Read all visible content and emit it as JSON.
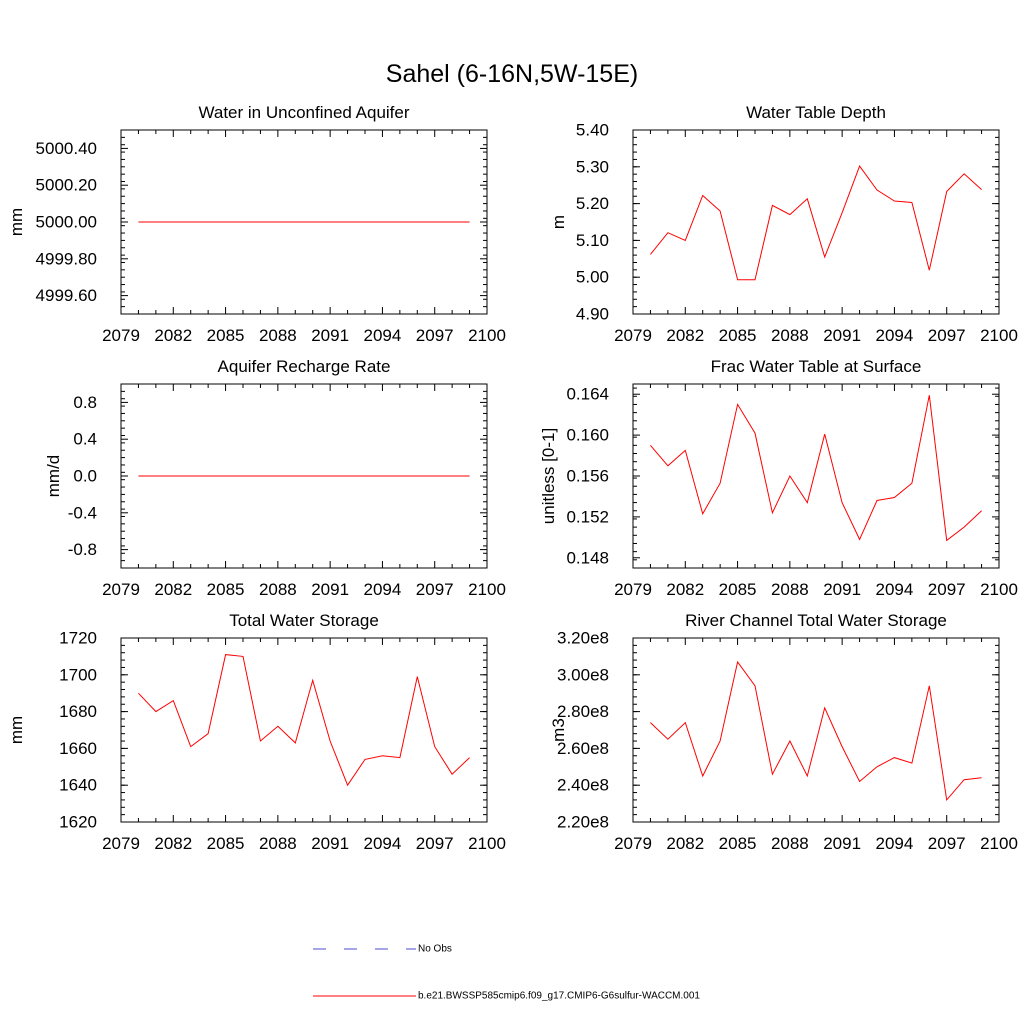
{
  "figure": {
    "title": "Sahel (6-16N,5W-15E)"
  },
  "legend": {
    "entries": [
      {
        "label": "No Obs",
        "color": "#4b4bd0",
        "style": "dashed"
      },
      {
        "label": "b.e21.BWSSP585cmip6.f09_g17.CMIP6-G6sulfur-WACCM.001",
        "color": "#ff0000",
        "style": "solid"
      }
    ]
  },
  "colors": {
    "series": "#ff0000",
    "obs": "#4b4bd0",
    "axis": "#000000"
  },
  "chart_data": [
    {
      "type": "line",
      "title": "Water in Unconfined Aquifer",
      "ylabel": "mm",
      "xlim": [
        2079,
        2100
      ],
      "ylim": [
        4999.5,
        5000.5
      ],
      "xticks": [
        "2079",
        "2082",
        "2085",
        "2088",
        "2091",
        "2094",
        "2097",
        "2100"
      ],
      "xtick_values": [
        2079,
        2082,
        2085,
        2088,
        2091,
        2094,
        2097,
        2100
      ],
      "yticks": [
        "4999.60",
        "4999.80",
        "5000.00",
        "5000.20",
        "5000.40"
      ],
      "ytick_values": [
        4999.6,
        4999.8,
        5000.0,
        5000.2,
        5000.4
      ],
      "x": [
        2080,
        2081,
        2082,
        2083,
        2084,
        2085,
        2086,
        2087,
        2088,
        2089,
        2090,
        2091,
        2092,
        2093,
        2094,
        2095,
        2096,
        2097,
        2098,
        2099
      ],
      "series": [
        {
          "values": [
            5000,
            5000,
            5000,
            5000,
            5000,
            5000,
            5000,
            5000,
            5000,
            5000,
            5000,
            5000,
            5000,
            5000,
            5000,
            5000,
            5000,
            5000,
            5000,
            5000
          ]
        }
      ]
    },
    {
      "type": "line",
      "title": "Water Table Depth",
      "ylabel": "m",
      "xlim": [
        2079,
        2100
      ],
      "ylim": [
        4.9,
        5.4
      ],
      "xticks": [
        "2079",
        "2082",
        "2085",
        "2088",
        "2091",
        "2094",
        "2097",
        "2100"
      ],
      "xtick_values": [
        2079,
        2082,
        2085,
        2088,
        2091,
        2094,
        2097,
        2100
      ],
      "yticks": [
        "4.90",
        "5.00",
        "5.10",
        "5.20",
        "5.30",
        "5.40"
      ],
      "ytick_values": [
        4.9,
        5.0,
        5.1,
        5.2,
        5.3,
        5.4
      ],
      "x": [
        2080,
        2081,
        2082,
        2083,
        2084,
        2085,
        2086,
        2087,
        2088,
        2089,
        2090,
        2091,
        2092,
        2093,
        2094,
        2095,
        2096,
        2097,
        2098,
        2099
      ],
      "series": [
        {
          "values": [
            5.062,
            5.121,
            5.1,
            5.222,
            5.18,
            4.993,
            4.993,
            5.195,
            5.17,
            5.213,
            5.055,
            5.175,
            5.302,
            5.237,
            5.207,
            5.203,
            5.019,
            5.233,
            5.281,
            5.238
          ]
        }
      ]
    },
    {
      "type": "line",
      "title": "Aquifer Recharge Rate",
      "ylabel": "mm/d",
      "xlim": [
        2079,
        2100
      ],
      "ylim": [
        -1.0,
        1.0
      ],
      "xticks": [
        "2079",
        "2082",
        "2085",
        "2088",
        "2091",
        "2094",
        "2097",
        "2100"
      ],
      "xtick_values": [
        2079,
        2082,
        2085,
        2088,
        2091,
        2094,
        2097,
        2100
      ],
      "yticks": [
        "-0.8",
        "-0.4",
        "0.0",
        "0.4",
        "0.8"
      ],
      "ytick_values": [
        -0.8,
        -0.4,
        0.0,
        0.4,
        0.8
      ],
      "x": [
        2080,
        2081,
        2082,
        2083,
        2084,
        2085,
        2086,
        2087,
        2088,
        2089,
        2090,
        2091,
        2092,
        2093,
        2094,
        2095,
        2096,
        2097,
        2098,
        2099
      ],
      "series": [
        {
          "values": [
            0,
            0,
            0,
            0,
            0,
            0,
            0,
            0,
            0,
            0,
            0,
            0,
            0,
            0,
            0,
            0,
            0,
            0,
            0,
            0
          ]
        }
      ]
    },
    {
      "type": "line",
      "title": "Frac Water Table at Surface",
      "ylabel": "unitless [0-1]",
      "xlim": [
        2079,
        2100
      ],
      "ylim": [
        0.147,
        0.165
      ],
      "xticks": [
        "2079",
        "2082",
        "2085",
        "2088",
        "2091",
        "2094",
        "2097",
        "2100"
      ],
      "xtick_values": [
        2079,
        2082,
        2085,
        2088,
        2091,
        2094,
        2097,
        2100
      ],
      "yticks": [
        "0.148",
        "0.152",
        "0.156",
        "0.160",
        "0.164"
      ],
      "ytick_values": [
        0.148,
        0.152,
        0.156,
        0.16,
        0.164
      ],
      "x": [
        2080,
        2081,
        2082,
        2083,
        2084,
        2085,
        2086,
        2087,
        2088,
        2089,
        2090,
        2091,
        2092,
        2093,
        2094,
        2095,
        2096,
        2097,
        2098,
        2099
      ],
      "series": [
        {
          "values": [
            0.159,
            0.157,
            0.1585,
            0.1523,
            0.1553,
            0.163,
            0.1602,
            0.1524,
            0.156,
            0.1534,
            0.1601,
            0.1534,
            0.1498,
            0.1536,
            0.1539,
            0.1553,
            0.1639,
            0.1497,
            0.151,
            0.1526
          ]
        }
      ]
    },
    {
      "type": "line",
      "title": "Total Water Storage",
      "ylabel": "mm",
      "xlim": [
        2079,
        2100
      ],
      "ylim": [
        1620,
        1720
      ],
      "xticks": [
        "2079",
        "2082",
        "2085",
        "2088",
        "2091",
        "2094",
        "2097",
        "2100"
      ],
      "xtick_values": [
        2079,
        2082,
        2085,
        2088,
        2091,
        2094,
        2097,
        2100
      ],
      "yticks": [
        "1620",
        "1640",
        "1660",
        "1680",
        "1700",
        "1720"
      ],
      "ytick_values": [
        1620,
        1640,
        1660,
        1680,
        1700,
        1720
      ],
      "x": [
        2080,
        2081,
        2082,
        2083,
        2084,
        2085,
        2086,
        2087,
        2088,
        2089,
        2090,
        2091,
        2092,
        2093,
        2094,
        2095,
        2096,
        2097,
        2098,
        2099
      ],
      "series": [
        {
          "values": [
            1690,
            1680,
            1686,
            1661,
            1668,
            1711,
            1710,
            1664,
            1672,
            1663,
            1697,
            1664,
            1640,
            1654,
            1656,
            1655,
            1699,
            1661,
            1646,
            1655
          ]
        }
      ]
    },
    {
      "type": "line",
      "title": "River Channel Total Water Storage",
      "ylabel": "m3",
      "xlim": [
        2079,
        2100
      ],
      "ylim": [
        220000000.0,
        320000000.0
      ],
      "xticks": [
        "2079",
        "2082",
        "2085",
        "2088",
        "2091",
        "2094",
        "2097",
        "2100"
      ],
      "xtick_values": [
        2079,
        2082,
        2085,
        2088,
        2091,
        2094,
        2097,
        2100
      ],
      "yticks": [
        "2.20e8",
        "2.40e8",
        "2.60e8",
        "2.80e8",
        "3.00e8",
        "3.20e8"
      ],
      "ytick_values": [
        220000000.0,
        240000000.0,
        260000000.0,
        280000000.0,
        300000000.0,
        320000000.0
      ],
      "x": [
        2080,
        2081,
        2082,
        2083,
        2084,
        2085,
        2086,
        2087,
        2088,
        2089,
        2090,
        2091,
        2092,
        2093,
        2094,
        2095,
        2096,
        2097,
        2098,
        2099
      ],
      "series": [
        {
          "values": [
            274000000.0,
            265000000.0,
            274000000.0,
            245000000.0,
            264000000.0,
            307000000.0,
            294000000.0,
            246000000.0,
            264000000.0,
            245000000.0,
            282000000.0,
            261000000.0,
            242000000.0,
            250000000.0,
            255000000.0,
            252000000.0,
            294000000.0,
            232000000.0,
            243000000.0,
            244000000.0
          ]
        }
      ]
    }
  ]
}
